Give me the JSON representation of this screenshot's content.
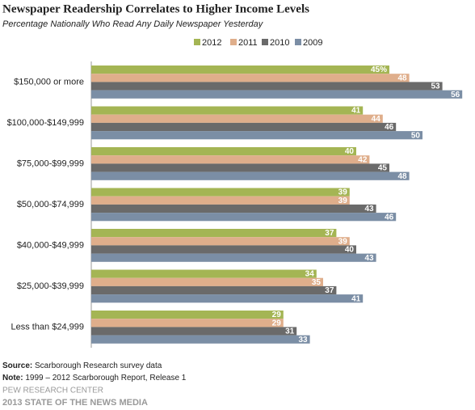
{
  "chart_data": {
    "type": "bar",
    "horizontal": true,
    "title": "Newspaper Readership Correlates  to Higher Income Levels",
    "subtitle": "Percentage Nationally Who Read Any Daily Newspaper Yesterday",
    "categories": [
      "$150,000 or more",
      "$100,000-$149,999",
      "$75,000-$99,999",
      "$50,000-$74,999",
      "$40,000-$49,999",
      "$25,000-$39,999",
      "Less than $24,999"
    ],
    "series": [
      {
        "name": "2012",
        "color": "#a4b554",
        "values": [
          45,
          41,
          40,
          39,
          37,
          34,
          29
        ],
        "value_labels": [
          "45%",
          "41",
          "40",
          "39",
          "37",
          "34",
          "29"
        ]
      },
      {
        "name": "2011",
        "color": "#dfae8b",
        "values": [
          48,
          44,
          42,
          39,
          39,
          35,
          29
        ]
      },
      {
        "name": "2010",
        "color": "#6a6a6a",
        "values": [
          53,
          46,
          45,
          43,
          40,
          37,
          31
        ]
      },
      {
        "name": "2009",
        "color": "#7b8ea5",
        "values": [
          56,
          50,
          48,
          46,
          43,
          41,
          33
        ]
      }
    ],
    "source_label": "Source:",
    "source": "Scarborough Research survey data",
    "note_label": "Note:",
    "note": "1999 – 2012 Scarborough Report, Release 1",
    "credit": "PEW RESEARCH CENTER",
    "footer": "2013 STATE OF THE NEWS MEDIA"
  }
}
